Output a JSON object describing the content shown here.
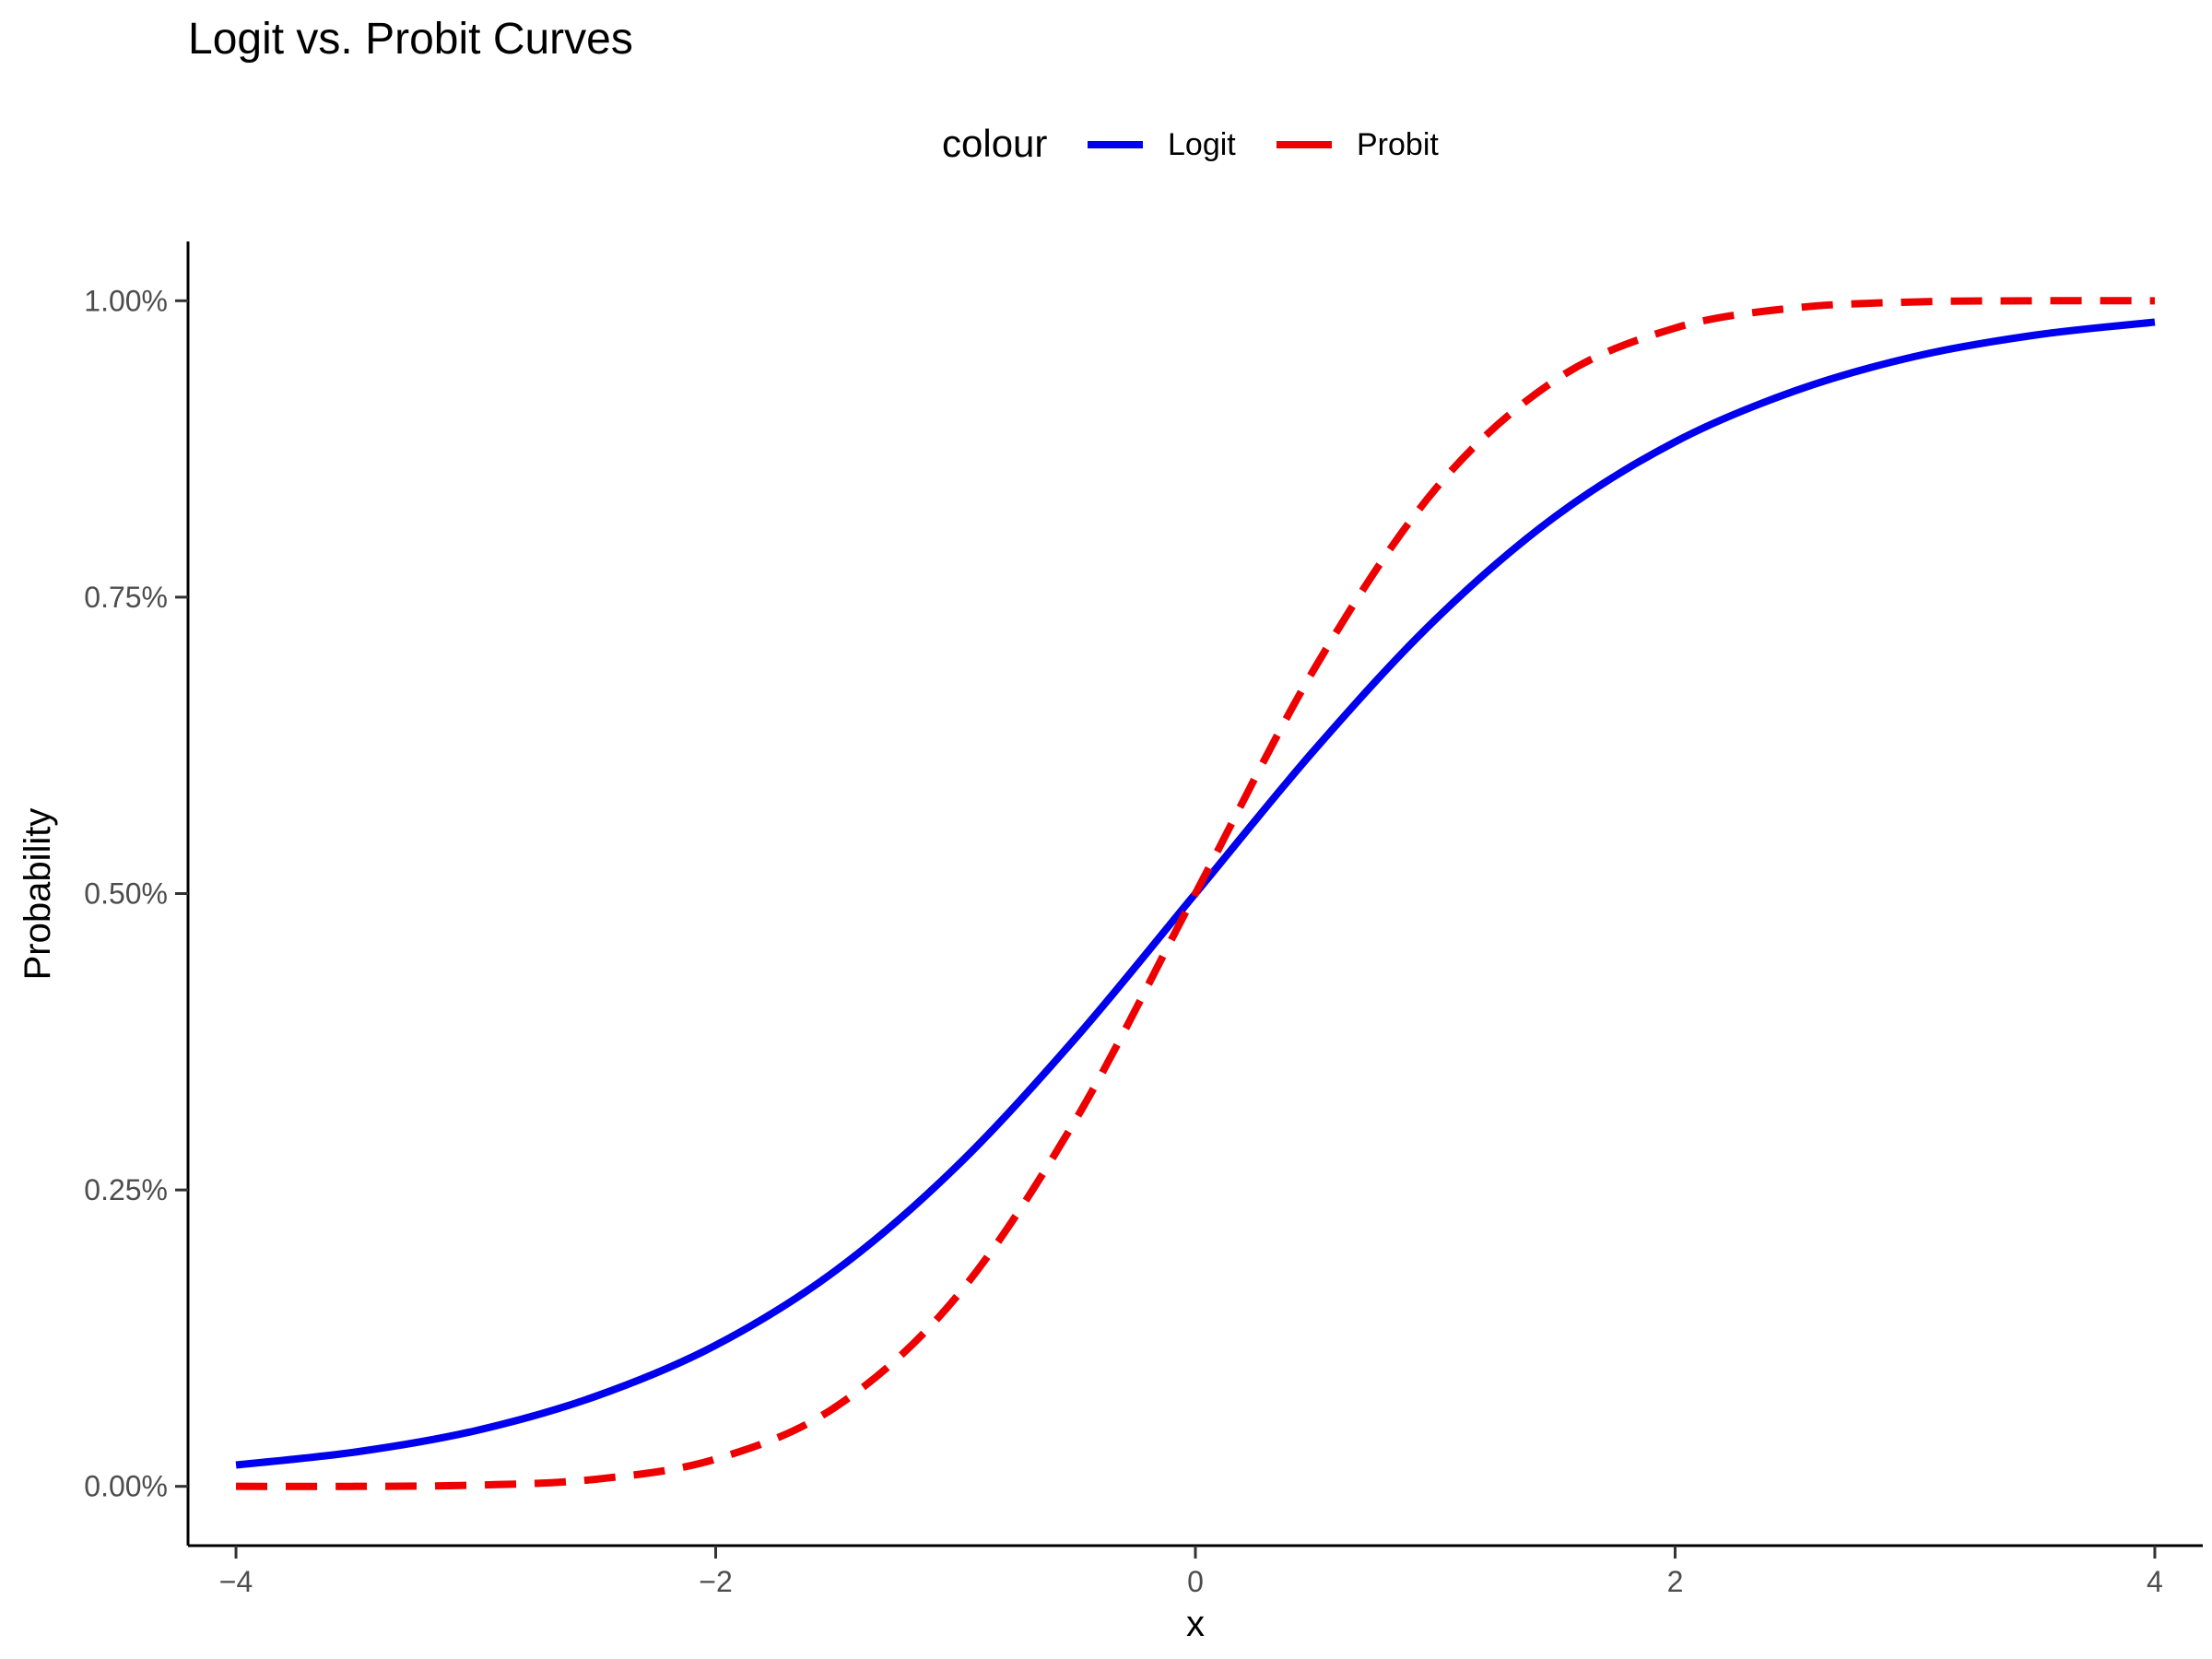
{
  "chart_data": {
    "type": "line",
    "title": "Logit vs. Probit Curves",
    "xlabel": "x",
    "ylabel": "Probability",
    "xlim": [
      -4.2,
      4.2
    ],
    "ylim": [
      -0.05,
      1.05
    ],
    "x_ticks": [
      -4,
      -2,
      0,
      2,
      4
    ],
    "x_tick_labels": [
      "−4",
      "−2",
      "0",
      "2",
      "4"
    ],
    "y_ticks": [
      0,
      0.25,
      0.5,
      0.75,
      1
    ],
    "y_tick_labels": [
      "0.00%",
      "0.25%",
      "0.50%",
      "0.75%",
      "1.00%"
    ],
    "grid": false,
    "legend": {
      "title": "colour",
      "position": "top"
    },
    "x": [
      -4.0,
      -3.5,
      -3.0,
      -2.5,
      -2.0,
      -1.5,
      -1.0,
      -0.5,
      0.0,
      0.5,
      1.0,
      1.5,
      2.0,
      2.5,
      3.0,
      3.5,
      4.0
    ],
    "series": [
      {
        "name": "Logit",
        "color": "#0000ee",
        "dash": "solid",
        "values": [
          0.018,
          0.029,
          0.047,
          0.076,
          0.119,
          0.182,
          0.269,
          0.378,
          0.5,
          0.622,
          0.731,
          0.818,
          0.881,
          0.924,
          0.953,
          0.971,
          0.982
        ]
      },
      {
        "name": "Probit",
        "color": "#ee0000",
        "dash": "dashed",
        "values": [
          0.0,
          0.0,
          0.001,
          0.006,
          0.023,
          0.067,
          0.159,
          0.309,
          0.5,
          0.691,
          0.841,
          0.933,
          0.977,
          0.994,
          0.999,
          1.0,
          1.0
        ]
      }
    ]
  }
}
